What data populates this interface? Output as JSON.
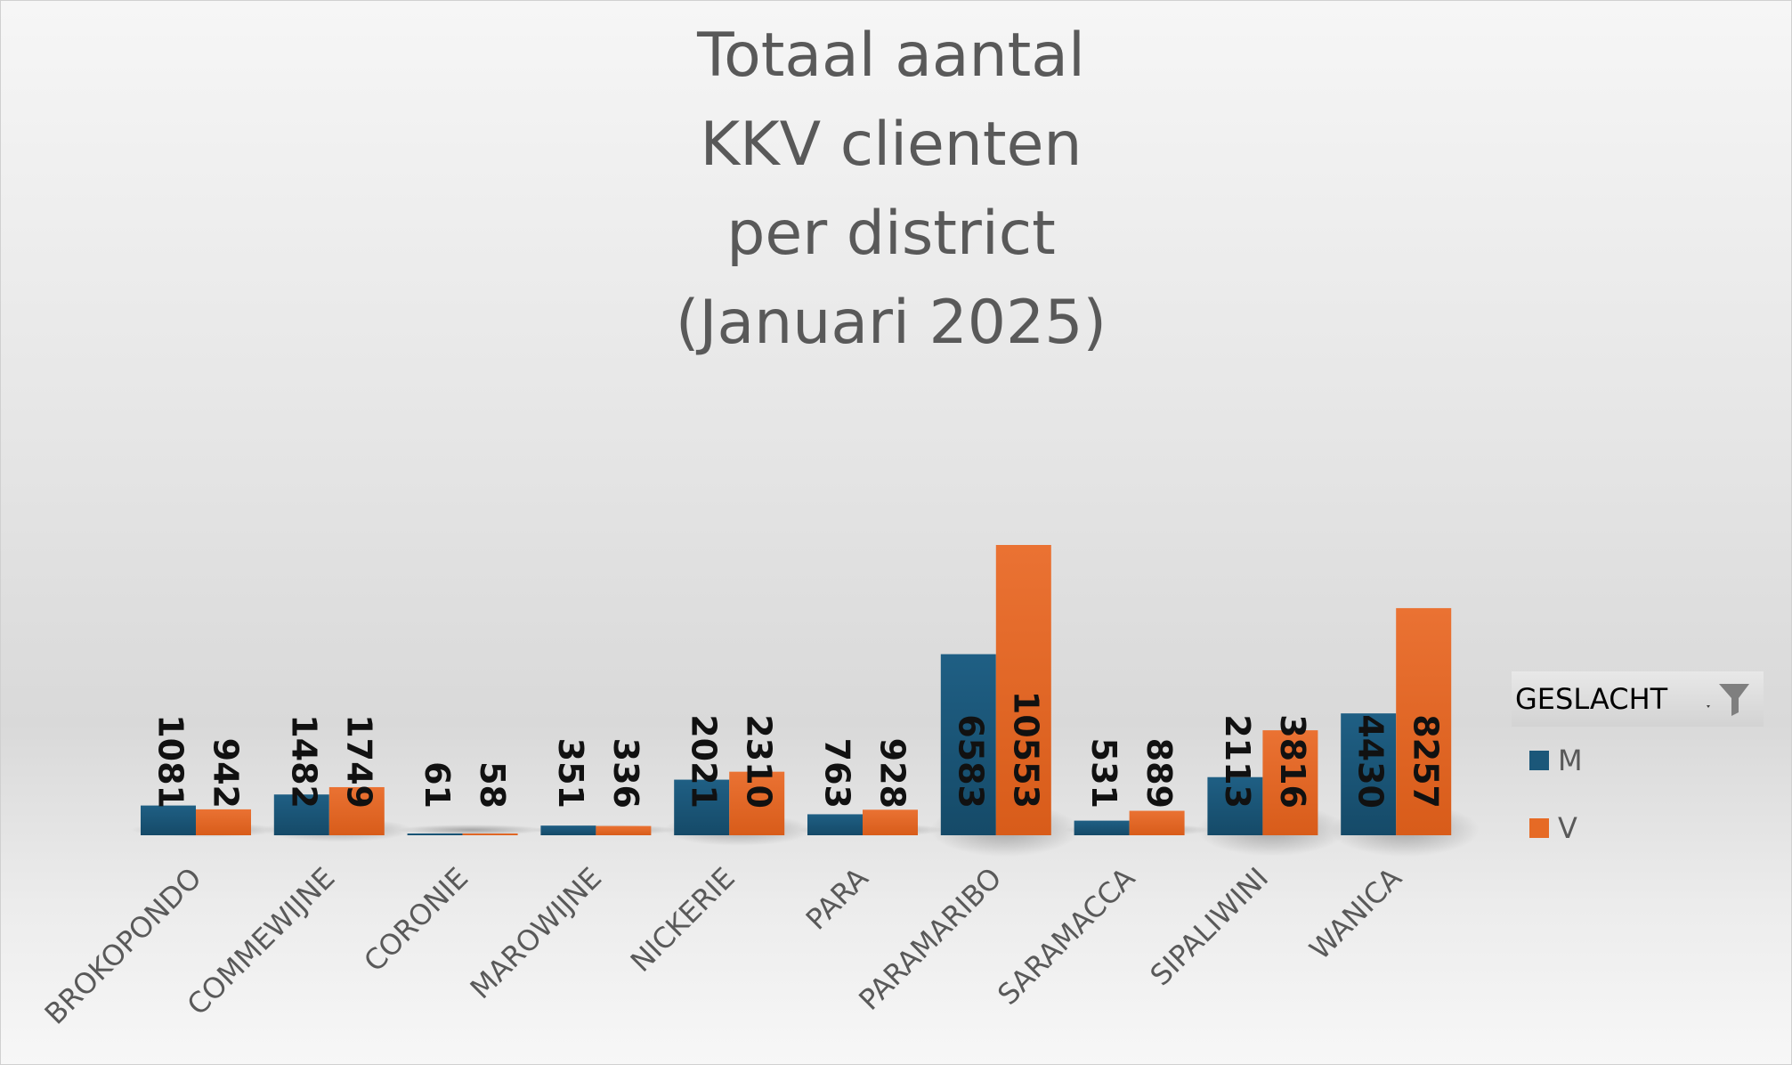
{
  "chart_data": {
    "type": "bar",
    "title": "Totaal aantal\nKKV clienten\nper district\n(Januari 2025)",
    "xlabel": "",
    "ylabel": "",
    "categories": [
      "BROKOPONDO",
      "COMMEWIJNE",
      "CORONIE",
      "MAROWIJNE",
      "NICKERIE",
      "PARA",
      "PARAMARIBO",
      "SARAMACCA",
      "SIPALIWINI",
      "WANICA"
    ],
    "series": [
      {
        "name": "M",
        "color": "#1b5779",
        "values": [
          1081,
          1482,
          61,
          351,
          2021,
          763,
          6583,
          531,
          2113,
          4430
        ]
      },
      {
        "name": "V",
        "color": "#e66a25",
        "values": [
          942,
          1749,
          58,
          336,
          2310,
          928,
          10553,
          889,
          3816,
          8257
        ]
      }
    ],
    "ylim": [
      0,
      10553
    ],
    "grid": false,
    "data_labels": true,
    "legend": {
      "title": "GESLACHT",
      "position": "right",
      "filter_icon": "filter-funnel-icon"
    }
  }
}
